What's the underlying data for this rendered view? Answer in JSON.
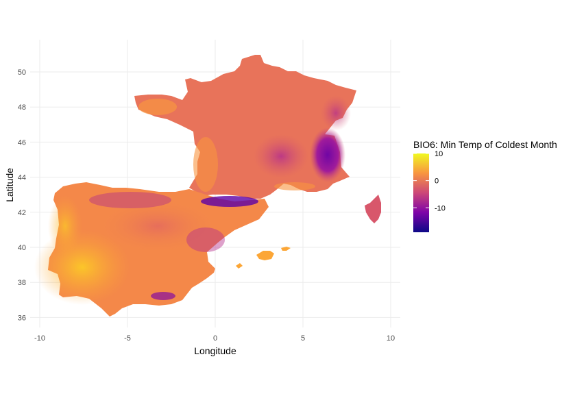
{
  "chart_data": {
    "type": "heatmap",
    "title": "",
    "xlabel": "Longitude",
    "ylabel": "Latitude",
    "x_ticks": [
      -10,
      -5,
      0,
      5,
      10
    ],
    "y_ticks": [
      36,
      38,
      40,
      42,
      44,
      46,
      48,
      50
    ],
    "xlim": [
      -10.1,
      10.5
    ],
    "ylim": [
      35.5,
      51.8
    ],
    "grid": true,
    "legend": {
      "title": "BIO6: Min Temp of Coldest Month",
      "placement": "right",
      "ticks": [
        10,
        0,
        -10
      ],
      "range": [
        -19,
        10
      ],
      "colors": [
        "#0d0887",
        "#7e03a8",
        "#cc4778",
        "#f89540",
        "#f0f921"
      ]
    },
    "regions": [
      {
        "name": "France",
        "typical_min_temp": 0
      },
      {
        "name": "Iberian Peninsula",
        "typical_min_temp": 3
      },
      {
        "name": "Corsica",
        "typical_min_temp": 1
      },
      {
        "name": "Balearic Islands",
        "typical_min_temp": 6
      },
      {
        "name": "Pyrenees",
        "typical_min_temp": -12
      },
      {
        "name": "Alps",
        "typical_min_temp": -14
      }
    ]
  }
}
